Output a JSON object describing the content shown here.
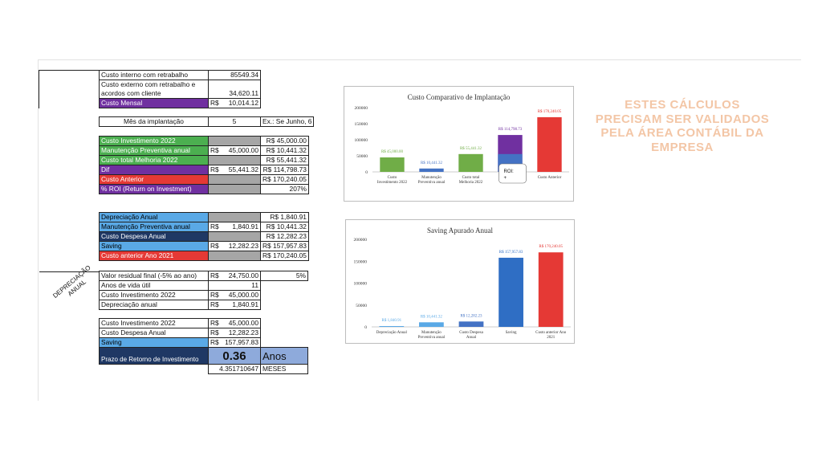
{
  "table1": [
    {
      "label": "Custo interno com retrabalho",
      "v1": "",
      "v2": "85549.34",
      "v3": ""
    },
    {
      "label": "Custo externo com retrabalho e acordos com cliente",
      "v1": "",
      "v2": "34,620.11",
      "v3": ""
    },
    {
      "label": "Custo Mensal",
      "v1": "R$",
      "v2": "10,014.12",
      "v3": ""
    }
  ],
  "month": {
    "label": "Mês da implantação",
    "value": "5",
    "note": "Ex.: Se Junho, 6"
  },
  "table2": [
    {
      "label": "Custo Investimento 2022",
      "v1": "",
      "v2": "",
      "v3": "R$  45,000.00"
    },
    {
      "label": "Manutenção Preventiva anual",
      "v1": "R$",
      "v2": "45,000.00",
      "v3": "R$  10,441.32"
    },
    {
      "label": "Custo total Melhoria 2022",
      "v1": "",
      "v2": "",
      "v3": "R$  55,441.32"
    },
    {
      "label": "Dif",
      "v1": "R$",
      "v2": "55,441.32",
      "v3": "R$ 114,798.73"
    },
    {
      "label": "Custo Anterior",
      "v1": "",
      "v2": "",
      "v3": "R$ 170,240.05"
    },
    {
      "label": "% ROI (Return on Investment)",
      "v1": "",
      "v2": "",
      "v3": "207%"
    }
  ],
  "table3": [
    {
      "label": "Depreciação Anual",
      "v1": "",
      "v2": "",
      "v3": "R$    1,840.91"
    },
    {
      "label": "Manutenção Preventiva anual",
      "v1": "R$",
      "v2": "1,840.91",
      "v3": "R$  10,441.32"
    },
    {
      "label": "Custo Despesa Anual",
      "v1": "",
      "v2": "",
      "v3": "R$  12,282.23"
    },
    {
      "label": "Saving",
      "v1": "R$",
      "v2": "12,282.23",
      "v3": "R$ 157,957.83"
    },
    {
      "label": "Custo anterior Ano 2021",
      "v1": "",
      "v2": "",
      "v3": "R$ 170,240.05"
    }
  ],
  "table4": [
    {
      "label": "Valor residual final (-5% ao ano)",
      "v1": "R$",
      "v2": "24,750.00",
      "v3": "5%"
    },
    {
      "label": "Anos de vida útil",
      "v1": "",
      "v2": "11",
      "v3": ""
    },
    {
      "label": "Custo Investimento 2022",
      "v1": "R$",
      "v2": "45,000.00",
      "v3": ""
    },
    {
      "label": "Depreciação anual",
      "v1": "R$",
      "v2": "1,840.91",
      "v3": ""
    }
  ],
  "deprec_label": "DEPRECIAÇÃO ANUAL",
  "table5": [
    {
      "label": "Custo Investimento 2022",
      "v1": "R$",
      "v2": "45,000.00"
    },
    {
      "label": "Custo Despesa Anual",
      "v1": "R$",
      "v2": "12,282.23"
    },
    {
      "label": "Saving",
      "v1": "R$",
      "v2": "157,957.83"
    }
  ],
  "payback": {
    "label": "Prazo de Retorno de Investimento",
    "value": "0.36",
    "unit": "Anos",
    "months": "4.351710647",
    "months_unit": "MESES"
  },
  "notice": "ESTES CÁLCULOS PRECISAM SER VALIDADOS PELA ÁREA CONTÁBIL DA EMPRESA",
  "chart_data": [
    {
      "type": "bar",
      "title": "Custo Comparativo de Implantação",
      "categories": [
        "Custo Investimento 2022",
        "Manutenção Preventiva anual",
        "Custo total Melhoria 2022",
        "Dif",
        "Custo Anterior"
      ],
      "category_labels": [
        "Custo\nInvestimento 2022",
        "Manutenção\nPreventiva anual",
        "Custo total\nMelhoria 2022",
        "",
        "Custo Anterior"
      ],
      "values": [
        45000,
        10441.32,
        55441.32,
        114798.73,
        170240.05
      ],
      "data_labels": [
        "R$ 45,000.00",
        "R$ 10,441.32",
        "R$ 55,441.32",
        "R$ 114,798.73",
        "R$ 170,240.05"
      ],
      "colors": [
        "#70ad47",
        "#4472c4",
        "#70ad47",
        "#7030a0",
        "#e53935"
      ],
      "yticks": [
        "0",
        "50000",
        "100000",
        "150000",
        "200000"
      ],
      "ylim": [
        0,
        200000
      ],
      "stack_under_4": 55441.32,
      "callout": "ROI:\n+"
    },
    {
      "type": "bar",
      "title": "Saving Apurado Anual",
      "categories": [
        "Depreciação Anual",
        "Manutenção Preventiva anual",
        "Custo Despesa Anual",
        "Saving",
        "Custo anterior Ano 2021"
      ],
      "category_labels": [
        "Depreciação Anual",
        "Manutenção\nPreventiva anual",
        "Custo Despesa\nAnual",
        "Saving",
        "Custo anterior Ano\n2021"
      ],
      "values": [
        1840.91,
        10441.32,
        12282.23,
        157957.83,
        170240.05
      ],
      "data_labels": [
        "R$ 1,840.91",
        "R$ 10,441.32",
        "R$ 12,282.23",
        "R$ 157,957.83",
        "R$ 170,240.05"
      ],
      "colors": [
        "#5aa9e6",
        "#5aa9e6",
        "#4472c4",
        "#2f6ec4",
        "#e53935"
      ],
      "yticks": [
        "0",
        "50000",
        "100000",
        "150000",
        "200000"
      ],
      "ylim": [
        0,
        200000
      ]
    }
  ]
}
